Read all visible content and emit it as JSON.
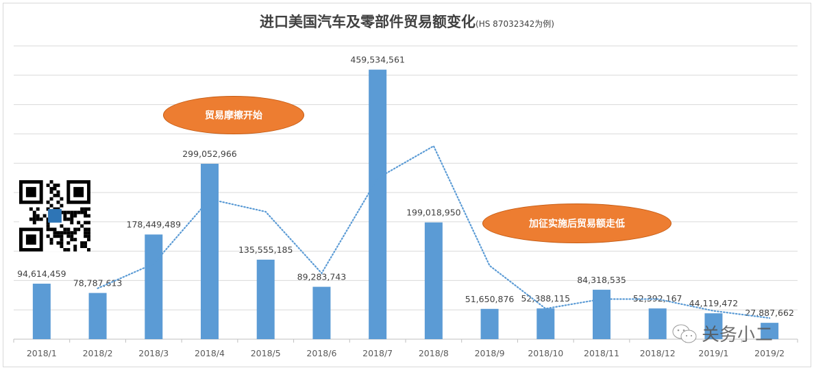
{
  "chart_data": {
    "type": "bar",
    "title": "进口美国汽车及零部件贸易额变化",
    "subtitle": "(HS 87032342为例)",
    "categories": [
      "2018/1",
      "2018/2",
      "2018/3",
      "2018/4",
      "2018/5",
      "2018/6",
      "2018/7",
      "2018/8",
      "2018/9",
      "2018/10",
      "2018/11",
      "2018/12",
      "2019/1",
      "2019/2"
    ],
    "series": [
      {
        "values": [
          94614459,
          78787613,
          178449489,
          299052966,
          135555185,
          89283743,
          459534561,
          199018950,
          51650876,
          52388115,
          84318535,
          52392167,
          44119472,
          27887662
        ]
      }
    ],
    "data_labels": [
      "94,614,459",
      "78,787,613",
      "178,449,489",
      "299,052,966",
      "135,555,185",
      "89,283,743",
      "459,534,561",
      "199,018,950",
      "51,650,876",
      "52,388,115",
      "84,318,535",
      "52,392,167",
      "44,119,472",
      "27,887,662"
    ],
    "trendline": {
      "type": "moving-average",
      "period": 2,
      "style": "dotted"
    },
    "ylim": [
      0,
      500000000
    ],
    "grid": true,
    "colors": {
      "bar": "#5b9bd5",
      "trend": "#5b9bd5",
      "callout": "#ed7d31",
      "grid": "#d9d9d9"
    },
    "annotations": [
      "贸易摩擦开始",
      "加征实施后贸易额走低"
    ]
  },
  "watermark": "关务小二",
  "qr_code": "qr-code-icon"
}
